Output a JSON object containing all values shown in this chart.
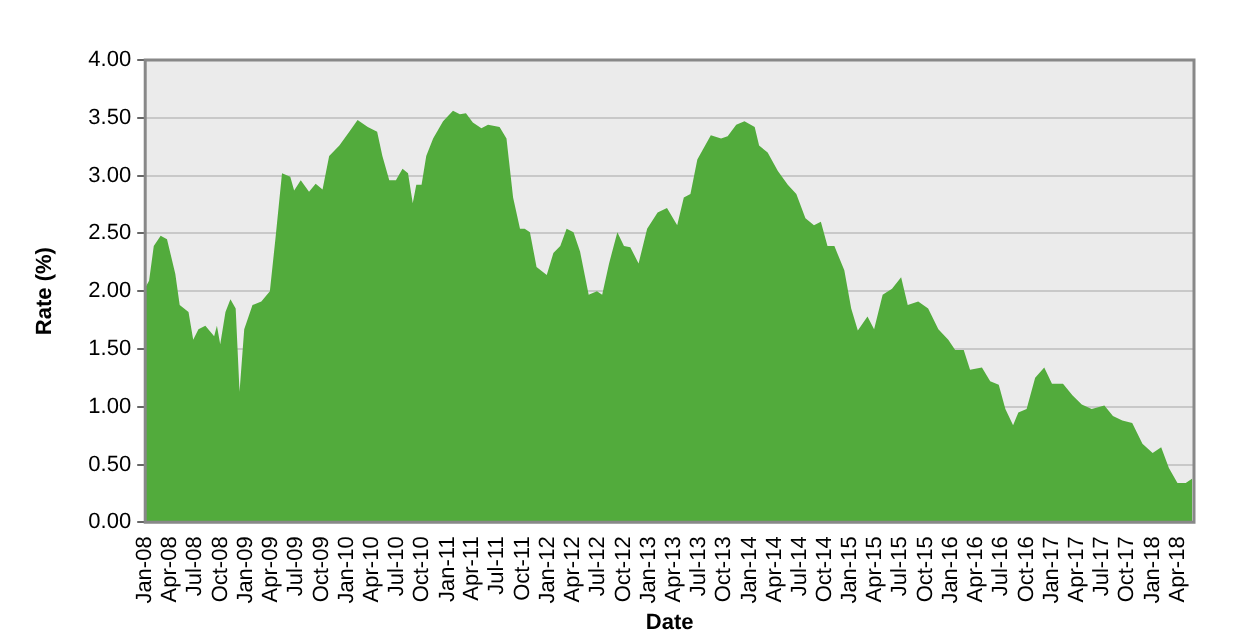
{
  "chart_data": {
    "type": "area",
    "xlabel": "Date",
    "ylabel": "Rate (%)",
    "x": [
      "2008-01-01",
      "2008-01-15",
      "2008-02-01",
      "2008-02-26",
      "2008-03-20",
      "2008-04-19",
      "2008-05-05",
      "2008-06-06",
      "2008-06-23",
      "2008-07-12",
      "2008-08-06",
      "2008-09-07",
      "2008-09-17",
      "2008-09-29",
      "2008-10-18",
      "2008-11-05",
      "2008-11-24",
      "2008-12-08",
      "2008-12-25",
      "2009-01-24",
      "2009-02-25",
      "2009-03-28",
      "2009-04-17",
      "2009-05-11",
      "2009-06-10",
      "2009-06-24",
      "2009-07-18",
      "2009-08-17",
      "2009-09-10",
      "2009-10-05",
      "2009-10-29",
      "2009-12-05",
      "2010-01-10",
      "2010-02-09",
      "2010-03-18",
      "2010-04-21",
      "2010-05-10",
      "2010-06-04",
      "2010-06-28",
      "2010-07-22",
      "2010-08-11",
      "2010-08-28",
      "2010-09-10",
      "2010-09-29",
      "2010-10-16",
      "2010-11-10",
      "2010-12-16",
      "2011-01-21",
      "2011-02-15",
      "2011-03-09",
      "2011-04-03",
      "2011-05-04",
      "2011-05-28",
      "2011-07-09",
      "2011-08-03",
      "2011-08-27",
      "2011-09-21",
      "2011-10-08",
      "2011-10-27",
      "2011-11-20",
      "2011-12-27",
      "2012-01-20",
      "2012-02-14",
      "2012-03-08",
      "2012-04-02",
      "2012-04-26",
      "2012-05-27",
      "2012-06-26",
      "2012-07-15",
      "2012-08-09",
      "2012-09-08",
      "2012-10-02",
      "2012-10-25",
      "2012-11-24",
      "2012-12-25",
      "2013-02-01",
      "2013-03-07",
      "2013-04-13",
      "2013-05-07",
      "2013-05-31",
      "2013-06-25",
      "2013-08-13",
      "2013-09-19",
      "2013-10-13",
      "2013-11-13",
      "2013-12-13",
      "2014-01-19",
      "2014-02-04",
      "2014-03-07",
      "2014-04-13",
      "2014-05-19",
      "2014-06-19",
      "2014-07-22",
      "2014-08-22",
      "2014-09-16",
      "2014-10-10",
      "2014-11-04",
      "2014-12-10",
      "2015-01-04",
      "2015-01-28",
      "2015-03-04",
      "2015-03-28",
      "2015-04-28",
      "2015-06-01",
      "2015-07-04",
      "2015-07-28",
      "2015-09-04",
      "2015-10-10",
      "2015-11-16",
      "2015-12-22",
      "2016-01-16",
      "2016-02-16",
      "2016-03-10",
      "2016-04-22",
      "2016-05-22",
      "2016-06-22",
      "2016-07-16",
      "2016-08-13",
      "2016-09-01",
      "2016-10-01",
      "2016-11-01",
      "2016-12-04",
      "2017-01-01",
      "2017-02-10",
      "2017-03-16",
      "2017-04-19",
      "2017-05-25",
      "2017-07-10",
      "2017-08-10",
      "2017-09-13",
      "2017-10-19",
      "2017-11-25",
      "2018-01-01",
      "2018-02-01",
      "2018-03-01",
      "2018-04-01",
      "2018-05-01",
      "2018-05-25"
    ],
    "series": [
      {
        "color": "#52ab3c",
        "values": [
          2.03,
          2.09,
          2.39,
          2.48,
          2.45,
          2.15,
          1.88,
          1.82,
          1.58,
          1.67,
          1.7,
          1.61,
          1.7,
          1.54,
          1.82,
          1.93,
          1.85,
          1.13,
          1.67,
          1.88,
          1.91,
          2.0,
          2.45,
          3.02,
          2.99,
          2.87,
          2.96,
          2.86,
          2.93,
          2.88,
          3.17,
          3.26,
          3.38,
          3.48,
          3.42,
          3.38,
          3.17,
          2.96,
          2.96,
          3.06,
          3.02,
          2.76,
          2.92,
          2.92,
          3.17,
          3.32,
          3.47,
          3.56,
          3.53,
          3.54,
          3.46,
          3.41,
          3.44,
          3.42,
          3.32,
          2.81,
          2.54,
          2.54,
          2.51,
          2.21,
          2.14,
          2.33,
          2.39,
          2.54,
          2.51,
          2.34,
          1.97,
          2.0,
          1.97,
          2.24,
          2.51,
          2.39,
          2.38,
          2.24,
          2.54,
          2.68,
          2.72,
          2.57,
          2.81,
          2.84,
          3.14,
          3.35,
          3.32,
          3.34,
          3.44,
          3.47,
          3.42,
          3.26,
          3.2,
          3.04,
          2.92,
          2.84,
          2.63,
          2.57,
          2.6,
          2.39,
          2.39,
          2.18,
          1.85,
          1.66,
          1.78,
          1.67,
          1.97,
          2.02,
          2.12,
          1.88,
          1.91,
          1.85,
          1.67,
          1.58,
          1.49,
          1.49,
          1.32,
          1.34,
          1.22,
          1.19,
          0.98,
          0.84,
          0.95,
          0.98,
          1.25,
          1.34,
          1.2,
          1.2,
          1.1,
          1.02,
          0.98,
          1.01,
          0.92,
          0.88,
          0.86,
          0.68,
          0.6,
          0.65,
          0.47,
          0.34,
          0.34,
          0.38
        ]
      }
    ],
    "xlim": [
      "2008-01-01",
      "2018-05-31"
    ],
    "xticks": [
      {
        "value": "2008-01",
        "label": "Jan-08"
      },
      {
        "value": "2008-04",
        "label": "Apr-08"
      },
      {
        "value": "2008-07",
        "label": "Jul-08"
      },
      {
        "value": "2008-10",
        "label": "Oct-08"
      },
      {
        "value": "2009-01",
        "label": "Jan-09"
      },
      {
        "value": "2009-04",
        "label": "Apr-09"
      },
      {
        "value": "2009-07",
        "label": "Jul-09"
      },
      {
        "value": "2009-10",
        "label": "Oct-09"
      },
      {
        "value": "2010-01",
        "label": "Jan-10"
      },
      {
        "value": "2010-04",
        "label": "Apr-10"
      },
      {
        "value": "2010-07",
        "label": "Jul-10"
      },
      {
        "value": "2010-10",
        "label": "Oct-10"
      },
      {
        "value": "2011-01",
        "label": "Jan-11"
      },
      {
        "value": "2011-04",
        "label": "Apr-11"
      },
      {
        "value": "2011-07",
        "label": "Jul-11"
      },
      {
        "value": "2011-10",
        "label": "Oct-11"
      },
      {
        "value": "2012-01",
        "label": "Jan-12"
      },
      {
        "value": "2012-04",
        "label": "Apr-12"
      },
      {
        "value": "2012-07",
        "label": "Jul-12"
      },
      {
        "value": "2012-10",
        "label": "Oct-12"
      },
      {
        "value": "2013-01",
        "label": "Jan-13"
      },
      {
        "value": "2013-04",
        "label": "Apr-13"
      },
      {
        "value": "2013-07",
        "label": "Jul-13"
      },
      {
        "value": "2013-10",
        "label": "Oct-13"
      },
      {
        "value": "2014-01",
        "label": "Jan-14"
      },
      {
        "value": "2014-04",
        "label": "Apr-14"
      },
      {
        "value": "2014-07",
        "label": "Jul-14"
      },
      {
        "value": "2014-10",
        "label": "Oct-14"
      },
      {
        "value": "2015-01",
        "label": "Jan-15"
      },
      {
        "value": "2015-04",
        "label": "Apr-15"
      },
      {
        "value": "2015-07",
        "label": "Jul-15"
      },
      {
        "value": "2015-10",
        "label": "Oct-15"
      },
      {
        "value": "2016-01",
        "label": "Jan-16"
      },
      {
        "value": "2016-04",
        "label": "Apr-16"
      },
      {
        "value": "2016-07",
        "label": "Jul-16"
      },
      {
        "value": "2016-10",
        "label": "Oct-16"
      },
      {
        "value": "2017-01",
        "label": "Jan-17"
      },
      {
        "value": "2017-04",
        "label": "Apr-17"
      },
      {
        "value": "2017-07",
        "label": "Jul-17"
      },
      {
        "value": "2017-10",
        "label": "Oct-17"
      },
      {
        "value": "2018-01",
        "label": "Jan-18"
      },
      {
        "value": "2018-04",
        "label": "Apr-18"
      }
    ],
    "ylim": [
      0,
      4
    ],
    "yticks": [
      {
        "value": 0,
        "label": "0.00"
      },
      {
        "value": 0.5,
        "label": "0.50"
      },
      {
        "value": 1,
        "label": "1.00"
      },
      {
        "value": 1.5,
        "label": "1.50"
      },
      {
        "value": 2,
        "label": "2.00"
      },
      {
        "value": 2.5,
        "label": "2.50"
      },
      {
        "value": 3,
        "label": "3.00"
      },
      {
        "value": 3.5,
        "label": "3.50"
      },
      {
        "value": 4,
        "label": "4.00"
      }
    ],
    "grid": "y"
  }
}
